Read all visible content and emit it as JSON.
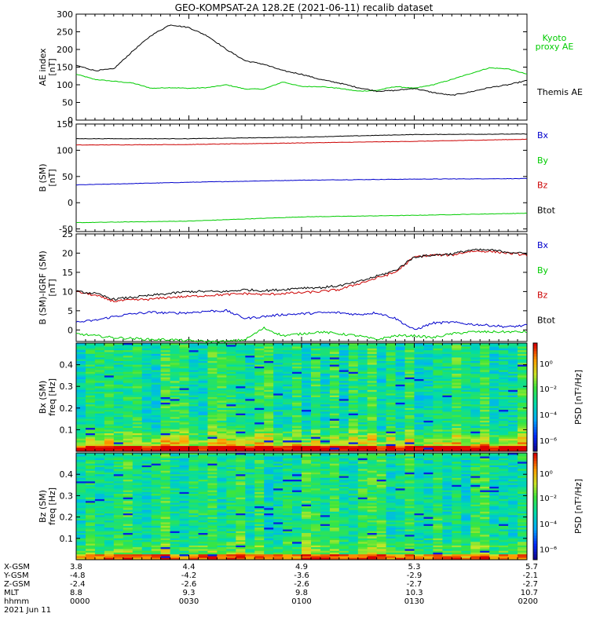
{
  "title": "GEO-KOMPSAT-2A 128.2E (2021-06-11) recalib dataset",
  "chart_data": [
    {
      "id": "ae",
      "type": "line",
      "ylabel": "AE index",
      "yunit": "[nT]",
      "ylim": [
        0,
        300
      ],
      "yticks": [
        0,
        50,
        100,
        150,
        200,
        250,
        300
      ],
      "x": [
        0,
        5,
        10,
        15,
        20,
        25,
        30,
        35,
        40,
        45,
        50,
        55,
        60,
        65,
        70,
        75,
        80,
        85,
        90,
        95,
        100,
        105,
        110,
        115,
        120
      ],
      "series": [
        {
          "name": "Themis AE",
          "color": "#000000",
          "values": [
            155,
            140,
            145,
            195,
            240,
            270,
            262,
            238,
            200,
            168,
            158,
            140,
            130,
            115,
            105,
            92,
            82,
            84,
            90,
            78,
            70,
            80,
            92,
            100,
            112
          ]
        },
        {
          "name": "Kyoto proxy AE",
          "color": "#00cc00",
          "values": [
            130,
            115,
            110,
            105,
            90,
            92,
            90,
            92,
            100,
            88,
            88,
            108,
            95,
            95,
            90,
            82,
            84,
            95,
            90,
            100,
            115,
            132,
            148,
            145,
            130
          ]
        }
      ]
    },
    {
      "id": "bsm",
      "type": "line",
      "ylabel": "B (SM)",
      "yunit": "[nT]",
      "ylim": [
        -55,
        150
      ],
      "yticks": [
        -50,
        0,
        50,
        100,
        150
      ],
      "x": [
        0,
        30,
        60,
        90,
        120
      ],
      "series": [
        {
          "name": "Bx",
          "color": "#0000cc",
          "values": [
            34,
            39,
            43,
            45,
            46
          ]
        },
        {
          "name": "By",
          "color": "#00cc00",
          "values": [
            -38,
            -35,
            -27,
            -24,
            -20
          ]
        },
        {
          "name": "Bz",
          "color": "#cc0000",
          "values": [
            110,
            111,
            114,
            117,
            121
          ]
        },
        {
          "name": "Btot",
          "color": "#000000",
          "values": [
            122,
            122,
            125,
            130,
            131
          ]
        }
      ]
    },
    {
      "id": "bsmigrf",
      "type": "line",
      "ylabel": "B (SM)-IGRF (SM)",
      "yunit": "[nT]",
      "ylim": [
        -3,
        25
      ],
      "yticks": [
        0,
        5,
        10,
        15,
        20,
        25
      ],
      "x": [
        0,
        5,
        10,
        15,
        20,
        25,
        30,
        35,
        40,
        45,
        50,
        55,
        60,
        65,
        70,
        75,
        80,
        85,
        90,
        95,
        100,
        105,
        110,
        115,
        120
      ],
      "series": [
        {
          "name": "Bx",
          "color": "#0000cc",
          "values": [
            2,
            2.5,
            3.5,
            4.2,
            4.6,
            4.4,
            4.5,
            4.9,
            5,
            3,
            3.5,
            4,
            4.2,
            4.5,
            4.5,
            4,
            4.5,
            3,
            0,
            1.8,
            2,
            1.5,
            1.2,
            0.8,
            1.2
          ]
        },
        {
          "name": "By",
          "color": "#00cc00",
          "values": [
            -1,
            -1.5,
            -2,
            -2.2,
            -2.5,
            -2.5,
            -2.8,
            -3,
            -3,
            -2.5,
            0.5,
            -1.5,
            -1,
            -0.5,
            -1,
            -1.5,
            -2.5,
            -1.5,
            -1.5,
            -2,
            -1,
            -0.5,
            -0.5,
            -0.5,
            -0.5
          ]
        },
        {
          "name": "Bz",
          "color": "#cc0000",
          "values": [
            10,
            9,
            7.5,
            7.8,
            8,
            8.5,
            8.7,
            9,
            9.2,
            9.5,
            9.2,
            9.5,
            9.7,
            10,
            10.5,
            12,
            13.5,
            15,
            19,
            19.5,
            19.5,
            20.5,
            20.5,
            20,
            19.5
          ]
        },
        {
          "name": "Btot",
          "color": "#000000",
          "values": [
            10,
            9.5,
            8,
            8.5,
            9,
            9.5,
            10,
            10,
            10,
            10.5,
            10.2,
            10.5,
            11,
            11,
            11.5,
            12.5,
            14,
            15.5,
            19,
            19.5,
            19.8,
            20.8,
            20.8,
            20.3,
            19.8
          ]
        }
      ]
    },
    {
      "id": "bxspec",
      "type": "heatmap",
      "ylabel": "Bx (SM)",
      "yunit": "freq [Hz]",
      "ylim": [
        0,
        0.5
      ],
      "yticks": [
        0.1,
        0.2,
        0.3,
        0.4
      ],
      "colorbar_label": "PSD [nT²/Hz]",
      "colorbar_ticks": [
        "10⁰",
        "10⁻²",
        "10⁻⁴",
        "10⁻⁶"
      ]
    },
    {
      "id": "bzspec",
      "type": "heatmap",
      "ylabel": "Bz (SM)",
      "yunit": "freq [Hz]",
      "ylim": [
        0,
        0.5
      ],
      "yticks": [
        0.1,
        0.2,
        0.3,
        0.4
      ],
      "colorbar_label": "PSD [nT²/Hz]",
      "colorbar_ticks": [
        "10⁰",
        "10⁻²",
        "10⁻⁴",
        "10⁻⁶"
      ]
    }
  ],
  "ae_legend": {
    "line1": "Kyoto",
    "line2": "proxy AE",
    "line3": "Themis AE"
  },
  "ephemeris": {
    "row_labels": [
      "X-GSM",
      "Y-GSM",
      "Z-GSM",
      "MLT",
      "hhmm",
      "2021 Jun 11"
    ],
    "columns": [
      {
        "x": "3.8",
        "y": "-4.8",
        "z": "-2.4",
        "mlt": "8.8",
        "hhmm": "0000"
      },
      {
        "x": "4.4",
        "y": "-4.2",
        "z": "-2.6",
        "mlt": "9.3",
        "hhmm": "0030"
      },
      {
        "x": "4.9",
        "y": "-3.6",
        "z": "-2.6",
        "mlt": "9.8",
        "hhmm": "0100"
      },
      {
        "x": "5.3",
        "y": "-2.9",
        "z": "-2.7",
        "mlt": "10.3",
        "hhmm": "0130"
      },
      {
        "x": "5.7",
        "y": "-2.1",
        "z": "-2.7",
        "mlt": "10.7",
        "hhmm": "0200"
      }
    ]
  }
}
